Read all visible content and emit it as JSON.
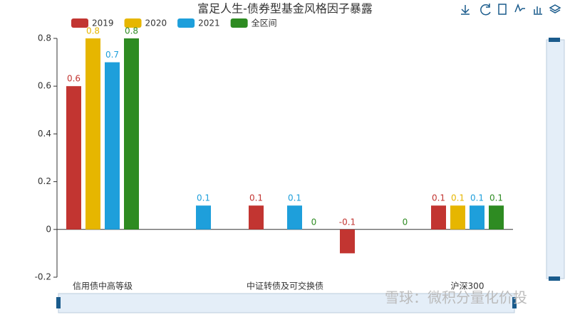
{
  "chart_data": {
    "type": "bar",
    "title": "富足人生-债券型基金风格因子暴露",
    "categories": [
      "信用债中高等级",
      null,
      "中证转债及可交换债",
      null,
      "沪深300"
    ],
    "series": [
      {
        "name": "2019",
        "color": "#c23531",
        "values": [
          0.6,
          null,
          0.1,
          -0.1,
          0.1
        ]
      },
      {
        "name": "2020",
        "color": "#e6b600",
        "values": [
          0.8,
          null,
          null,
          null,
          0.1
        ]
      },
      {
        "name": "2021",
        "color": "#1e9fdb",
        "values": [
          0.7,
          0.1,
          0.1,
          null,
          0.1
        ]
      },
      {
        "name": "全区间",
        "color": "#2e8b22",
        "values": [
          0.8,
          null,
          0,
          0,
          0.1
        ]
      }
    ],
    "ylim": [
      -0.2,
      0.8
    ],
    "yticks": [
      -0.2,
      0,
      0.2,
      0.4,
      0.6,
      0.8
    ],
    "watermark": "雪球：微积分量化价投"
  }
}
